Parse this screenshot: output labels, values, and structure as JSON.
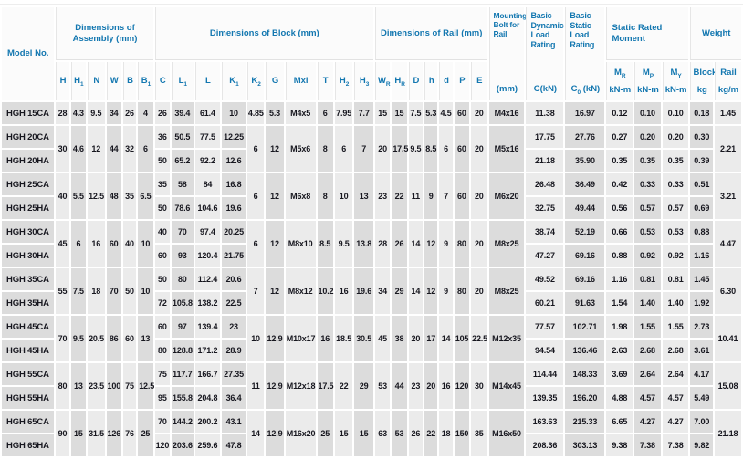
{
  "table": {
    "header": {
      "model_label": "Model No.",
      "assembly_label": "Dimensions of Assembly (mm)",
      "block_label": "Dimensions of Block (mm)",
      "rail_label": "Dimensions of Rail (mm)",
      "bolt_label": "Mounting Bolt for Rail",
      "bolt_sub": "(mm)",
      "dynamic_label": "Basic Dynamic Load Rating",
      "dynamic_sub": "C(kN)",
      "static_label": "Basic Static Load Rating",
      "static_sub_segs": [
        [
          "C",
          false
        ],
        [
          "0",
          true
        ],
        [
          " (kN)",
          false
        ]
      ],
      "moment_label": "Static Rated Moment",
      "weight_label": "Weight"
    },
    "colors": {
      "header_text": "#1377b0",
      "col_dark": "#dcdcdc",
      "col_light": "#ebebeb",
      "data_text": "#17171f"
    },
    "column_keys": [
      "model",
      "H",
      "H1",
      "N",
      "W",
      "B",
      "B1",
      "C",
      "L1",
      "L",
      "K1",
      "K2",
      "G",
      "Mxl",
      "T",
      "H2",
      "H3",
      "WR",
      "HR",
      "D",
      "h",
      "d",
      "P",
      "E",
      "bolt",
      "C-kN",
      "C0-kN",
      "MR",
      "MP",
      "MY",
      "block-kg",
      "rail-kgm"
    ],
    "sub_columns": [
      {
        "key": "H",
        "main": [
          [
            "H",
            false
          ]
        ]
      },
      {
        "key": "H1",
        "main": [
          [
            "H",
            false
          ],
          [
            "1",
            true
          ]
        ]
      },
      {
        "key": "N",
        "main": [
          [
            "N",
            false
          ]
        ]
      },
      {
        "key": "W",
        "main": [
          [
            "W",
            false
          ]
        ]
      },
      {
        "key": "B",
        "main": [
          [
            "B",
            false
          ]
        ]
      },
      {
        "key": "B1",
        "main": [
          [
            "B",
            false
          ],
          [
            "1",
            true
          ]
        ]
      },
      {
        "key": "C",
        "main": [
          [
            "C",
            false
          ]
        ]
      },
      {
        "key": "L1",
        "main": [
          [
            "L",
            false
          ],
          [
            "1",
            true
          ]
        ]
      },
      {
        "key": "L",
        "main": [
          [
            "L",
            false
          ]
        ]
      },
      {
        "key": "K1",
        "main": [
          [
            "K",
            false
          ],
          [
            "1",
            true
          ]
        ]
      },
      {
        "key": "K2",
        "main": [
          [
            "K",
            false
          ],
          [
            "2",
            true
          ]
        ]
      },
      {
        "key": "G",
        "main": [
          [
            "G",
            false
          ]
        ]
      },
      {
        "key": "Mxl",
        "main": [
          [
            "Mxl",
            false
          ]
        ]
      },
      {
        "key": "T",
        "main": [
          [
            "T",
            false
          ]
        ]
      },
      {
        "key": "H2",
        "main": [
          [
            "H",
            false
          ],
          [
            "2",
            true
          ]
        ]
      },
      {
        "key": "H3",
        "main": [
          [
            "H",
            false
          ],
          [
            "3",
            true
          ]
        ]
      },
      {
        "key": "WR",
        "main": [
          [
            "W",
            false
          ],
          [
            "R",
            true
          ]
        ]
      },
      {
        "key": "HR",
        "main": [
          [
            "H",
            false
          ],
          [
            "R",
            true
          ]
        ]
      },
      {
        "key": "D",
        "main": [
          [
            "D",
            false
          ]
        ]
      },
      {
        "key": "h",
        "main": [
          [
            "h",
            false
          ]
        ]
      },
      {
        "key": "d",
        "main": [
          [
            "d",
            false
          ]
        ]
      },
      {
        "key": "P",
        "main": [
          [
            "P",
            false
          ]
        ]
      },
      {
        "key": "E",
        "main": [
          [
            "E",
            false
          ]
        ]
      },
      {
        "key": "MR",
        "main": [
          [
            "M",
            false
          ],
          [
            "R",
            true
          ]
        ],
        "second": "kN-m",
        "two": true
      },
      {
        "key": "MP",
        "main": [
          [
            "M",
            false
          ],
          [
            "P",
            true
          ]
        ],
        "second": "kN-m",
        "two": true
      },
      {
        "key": "MY",
        "main": [
          [
            "M",
            false
          ],
          [
            "Y",
            true
          ]
        ],
        "second": "kN-m",
        "two": true
      },
      {
        "key": "block-kg",
        "main": [
          [
            "Block",
            false
          ]
        ],
        "second": "kg",
        "two": true
      },
      {
        "key": "rail-kgm",
        "main": [
          [
            "Rail",
            false
          ]
        ],
        "second": "kg/m",
        "two": true
      }
    ],
    "groups": [
      {
        "assembly": [
          "28",
          "4.3",
          "9.5",
          "34",
          "26",
          "4"
        ],
        "block_shared": [
          "4.85",
          "5.3",
          "M4x5",
          "6",
          "7.95",
          "7.7"
        ],
        "rail": [
          "15",
          "15",
          "7.5",
          "5.3",
          "4.5",
          "60",
          "20"
        ],
        "bolt": "M4x16",
        "rail_weight": "1.45",
        "rows": [
          {
            "model": "HGH 15CA",
            "block": [
              "26",
              "39.4",
              "61.4",
              "10"
            ],
            "loads": [
              "11.38",
              "16.97",
              "0.12",
              "0.10",
              "0.10",
              "0.18"
            ]
          }
        ]
      },
      {
        "assembly": [
          "30",
          "4.6",
          "12",
          "44",
          "32",
          "6"
        ],
        "block_shared": [
          "6",
          "12",
          "M5x6",
          "8",
          "6",
          "7"
        ],
        "rail": [
          "20",
          "17.5",
          "9.5",
          "8.5",
          "6",
          "60",
          "20"
        ],
        "bolt": "M5x16",
        "rail_weight": "2.21",
        "rows": [
          {
            "model": "HGH 20CA",
            "block": [
              "36",
              "50.5",
              "77.5",
              "12.25"
            ],
            "loads": [
              "17.75",
              "27.76",
              "0.27",
              "0.20",
              "0.20",
              "0.30"
            ]
          },
          {
            "model": "HGH 20HA",
            "block": [
              "50",
              "65.2",
              "92.2",
              "12.6"
            ],
            "loads": [
              "21.18",
              "35.90",
              "0.35",
              "0.35",
              "0.35",
              "0.39"
            ]
          }
        ]
      },
      {
        "assembly": [
          "40",
          "5.5",
          "12.5",
          "48",
          "35",
          "6.5"
        ],
        "block_shared": [
          "6",
          "12",
          "M6x8",
          "8",
          "10",
          "13"
        ],
        "rail": [
          "23",
          "22",
          "11",
          "9",
          "7",
          "60",
          "20"
        ],
        "bolt": "M6x20",
        "rail_weight": "3.21",
        "rows": [
          {
            "model": "HGH 25CA",
            "block": [
              "35",
              "58",
              "84",
              "16.8"
            ],
            "loads": [
              "26.48",
              "36.49",
              "0.42",
              "0.33",
              "0.33",
              "0.51"
            ]
          },
          {
            "model": "HGH 25HA",
            "block": [
              "50",
              "78.6",
              "104.6",
              "19.6"
            ],
            "loads": [
              "32.75",
              "49.44",
              "0.56",
              "0.57",
              "0.57",
              "0.69"
            ]
          }
        ]
      },
      {
        "assembly": [
          "45",
          "6",
          "16",
          "60",
          "40",
          "10"
        ],
        "block_shared": [
          "6",
          "12",
          "M8x10",
          "8.5",
          "9.5",
          "13.8"
        ],
        "rail": [
          "28",
          "26",
          "14",
          "12",
          "9",
          "80",
          "20"
        ],
        "bolt": "M8x25",
        "rail_weight": "4.47",
        "rows": [
          {
            "model": "HGH 30CA",
            "block": [
              "40",
              "70",
              "97.4",
              "20.25"
            ],
            "loads": [
              "38.74",
              "52.19",
              "0.66",
              "0.53",
              "0.53",
              "0.88"
            ]
          },
          {
            "model": "HGH 30HA",
            "block": [
              "60",
              "93",
              "120.4",
              "21.75"
            ],
            "loads": [
              "47.27",
              "69.16",
              "0.88",
              "0.92",
              "0.92",
              "1.16"
            ]
          }
        ]
      },
      {
        "assembly": [
          "55",
          "7.5",
          "18",
          "70",
          "50",
          "10"
        ],
        "block_shared": [
          "7",
          "12",
          "M8x12",
          "10.2",
          "16",
          "19.6"
        ],
        "rail": [
          "34",
          "29",
          "14",
          "12",
          "9",
          "80",
          "20"
        ],
        "bolt": "M8x25",
        "rail_weight": "6.30",
        "rows": [
          {
            "model": "HGH 35CA",
            "block": [
              "50",
              "80",
              "112.4",
              "20.6"
            ],
            "loads": [
              "49.52",
              "69.16",
              "1.16",
              "0.81",
              "0.81",
              "1.45"
            ]
          },
          {
            "model": "HGH 35HA",
            "block": [
              "72",
              "105.8",
              "138.2",
              "22.5"
            ],
            "loads": [
              "60.21",
              "91.63",
              "1.54",
              "1.40",
              "1.40",
              "1.92"
            ]
          }
        ]
      },
      {
        "assembly": [
          "70",
          "9.5",
          "20.5",
          "86",
          "60",
          "13"
        ],
        "block_shared": [
          "10",
          "12.9",
          "M10x17",
          "16",
          "18.5",
          "30.5"
        ],
        "rail": [
          "45",
          "38",
          "20",
          "17",
          "14",
          "105",
          "22.5"
        ],
        "bolt": "M12x35",
        "rail_weight": "10.41",
        "rows": [
          {
            "model": "HGH 45CA",
            "block": [
              "60",
              "97",
              "139.4",
              "23"
            ],
            "loads": [
              "77.57",
              "102.71",
              "1.98",
              "1.55",
              "1.55",
              "2.73"
            ]
          },
          {
            "model": "HGH 45HA",
            "block": [
              "80",
              "128.8",
              "171.2",
              "28.9"
            ],
            "loads": [
              "94.54",
              "136.46",
              "2.63",
              "2.68",
              "2.68",
              "3.61"
            ]
          }
        ]
      },
      {
        "assembly": [
          "80",
          "13",
          "23.5",
          "100",
          "75",
          "12.5"
        ],
        "block_shared": [
          "11",
          "12.9",
          "M12x18",
          "17.5",
          "22",
          "29"
        ],
        "rail": [
          "53",
          "44",
          "23",
          "20",
          "16",
          "120",
          "30"
        ],
        "bolt": "M14x45",
        "rail_weight": "15.08",
        "rows": [
          {
            "model": "HGH 55CA",
            "block": [
              "75",
              "117.7",
              "166.7",
              "27.35"
            ],
            "loads": [
              "114.44",
              "148.33",
              "3.69",
              "2.64",
              "2.64",
              "4.17"
            ]
          },
          {
            "model": "HGH 55HA",
            "block": [
              "95",
              "155.8",
              "204.8",
              "36.4"
            ],
            "loads": [
              "139.35",
              "196.20",
              "4.88",
              "4.57",
              "4.57",
              "5.49"
            ]
          }
        ]
      },
      {
        "assembly": [
          "90",
          "15",
          "31.5",
          "126",
          "76",
          "25"
        ],
        "block_shared": [
          "14",
          "12.9",
          "M16x20",
          "25",
          "15",
          "15"
        ],
        "rail": [
          "63",
          "53",
          "26",
          "22",
          "18",
          "150",
          "35"
        ],
        "bolt": "M16x50",
        "rail_weight": "21.18",
        "rows": [
          {
            "model": "HGH 65CA",
            "block": [
              "70",
              "144.2",
              "200.2",
              "43.1"
            ],
            "loads": [
              "163.63",
              "215.33",
              "6.65",
              "4.27",
              "4.27",
              "7.00"
            ]
          },
          {
            "model": "HGH 65HA",
            "block": [
              "120",
              "203.6",
              "259.6",
              "47.8"
            ],
            "loads": [
              "208.36",
              "303.13",
              "9.38",
              "7.38",
              "7.38",
              "9.82"
            ]
          }
        ]
      }
    ]
  }
}
